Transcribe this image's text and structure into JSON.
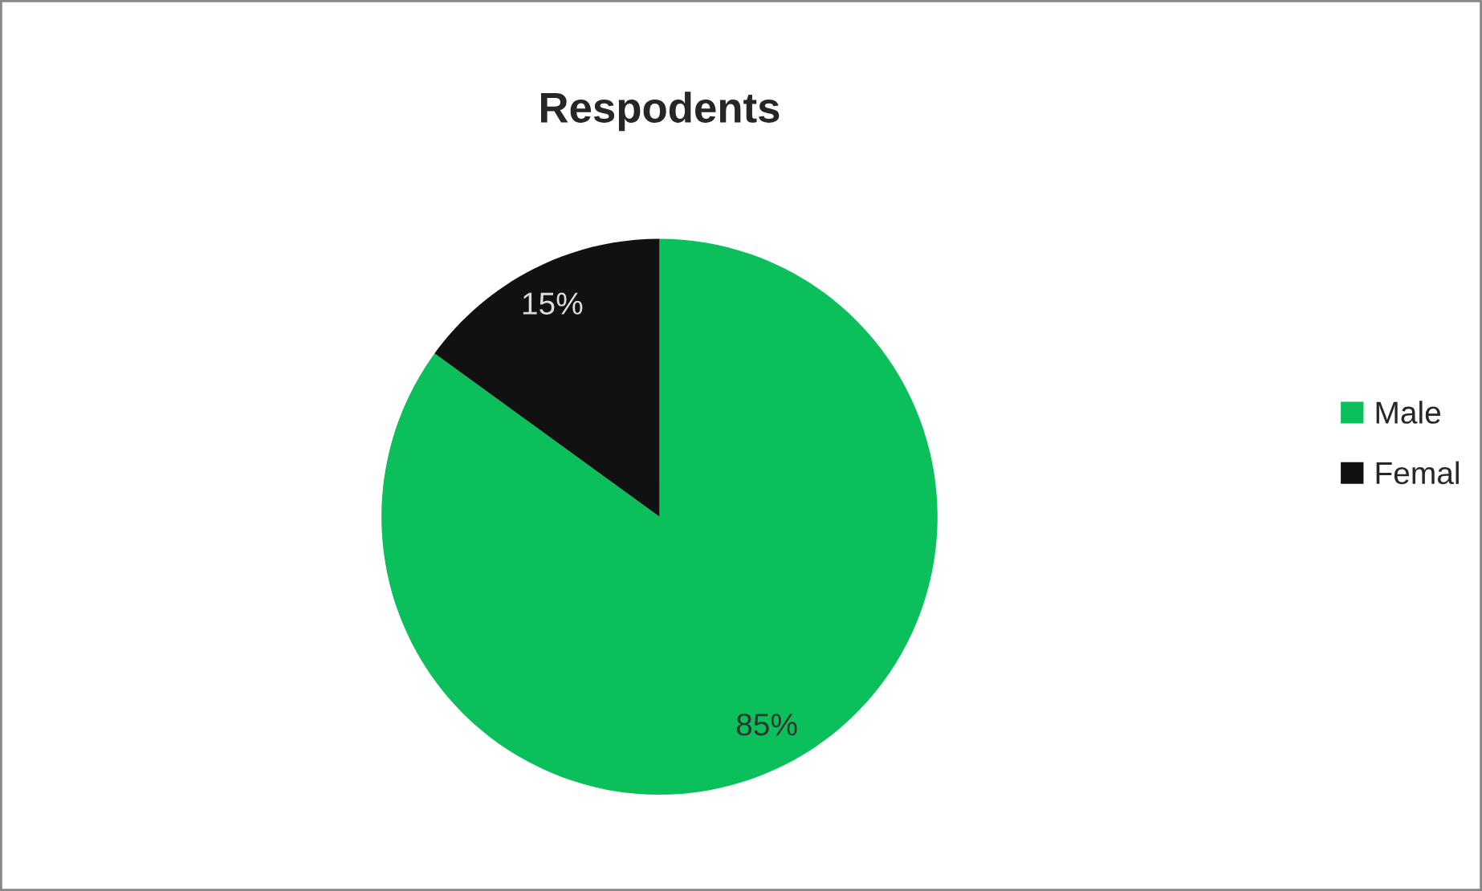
{
  "chart_data": {
    "type": "pie",
    "title": "Respodents",
    "categories": [
      "Male",
      "Femal"
    ],
    "values": [
      85,
      15
    ],
    "colors": [
      "#0bbf5a",
      "#111111"
    ],
    "value_labels": [
      "85%",
      "15%"
    ],
    "legend": "right"
  }
}
